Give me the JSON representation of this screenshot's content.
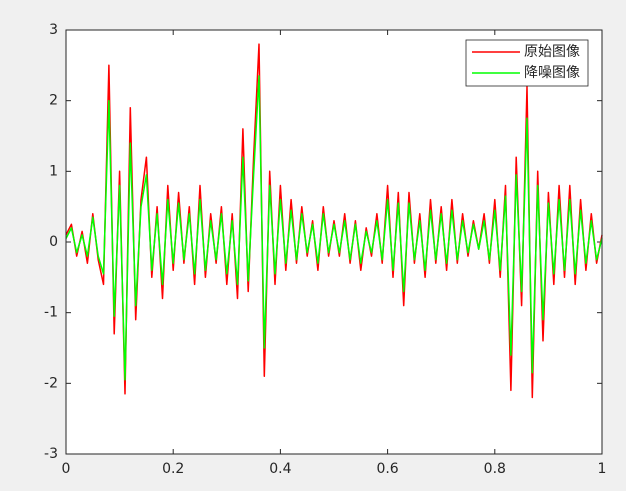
{
  "chart_data": {
    "type": "line",
    "x": [
      0,
      0.01,
      0.02,
      0.03,
      0.04,
      0.05,
      0.06,
      0.07,
      0.08,
      0.09,
      0.1,
      0.11,
      0.12,
      0.13,
      0.14,
      0.15,
      0.16,
      0.17,
      0.18,
      0.19,
      0.2,
      0.21,
      0.22,
      0.23,
      0.24,
      0.25,
      0.26,
      0.27,
      0.28,
      0.29,
      0.3,
      0.31,
      0.32,
      0.33,
      0.34,
      0.35,
      0.36,
      0.37,
      0.38,
      0.39,
      0.4,
      0.41,
      0.42,
      0.43,
      0.44,
      0.45,
      0.46,
      0.47,
      0.48,
      0.49,
      0.5,
      0.51,
      0.52,
      0.53,
      0.54,
      0.55,
      0.56,
      0.57,
      0.58,
      0.59,
      0.6,
      0.61,
      0.62,
      0.63,
      0.64,
      0.65,
      0.66,
      0.67,
      0.68,
      0.69,
      0.7,
      0.71,
      0.72,
      0.73,
      0.74,
      0.75,
      0.76,
      0.77,
      0.78,
      0.79,
      0.8,
      0.81,
      0.82,
      0.83,
      0.84,
      0.85,
      0.86,
      0.87,
      0.88,
      0.89,
      0.9,
      0.91,
      0.92,
      0.93,
      0.94,
      0.95,
      0.96,
      0.97,
      0.98,
      0.99,
      1
    ],
    "series": [
      {
        "name": "原始图像",
        "color": "#ff0000",
        "values": [
          0.1,
          0.25,
          -0.2,
          0.15,
          -0.3,
          0.4,
          -0.25,
          -0.6,
          2.5,
          -1.3,
          1.0,
          -2.15,
          1.9,
          -1.1,
          0.6,
          1.2,
          -0.5,
          0.5,
          -0.8,
          0.8,
          -0.4,
          0.7,
          -0.3,
          0.5,
          -0.6,
          0.8,
          -0.5,
          0.4,
          -0.3,
          0.5,
          -0.6,
          0.4,
          -0.8,
          1.6,
          -0.7,
          1.2,
          2.8,
          -1.9,
          1.0,
          -0.6,
          0.8,
          -0.4,
          0.6,
          -0.3,
          0.5,
          -0.2,
          0.3,
          -0.4,
          0.5,
          -0.2,
          0.3,
          -0.2,
          0.4,
          -0.3,
          0.3,
          -0.4,
          0.2,
          -0.2,
          0.4,
          -0.3,
          0.8,
          -0.5,
          0.7,
          -0.9,
          0.7,
          -0.3,
          0.4,
          -0.5,
          0.6,
          -0.3,
          0.5,
          -0.4,
          0.6,
          -0.3,
          0.4,
          -0.2,
          0.3,
          -0.1,
          0.4,
          -0.3,
          0.6,
          -0.5,
          0.8,
          -2.1,
          1.2,
          -0.9,
          2.2,
          -2.2,
          1.0,
          -1.4,
          0.7,
          -0.6,
          0.8,
          -0.5,
          0.8,
          -0.6,
          0.6,
          -0.4,
          0.4,
          -0.3,
          0.1
        ]
      },
      {
        "name": "降噪图像",
        "color": "#00ff00",
        "values": [
          0.05,
          0.2,
          -0.15,
          0.1,
          -0.2,
          0.35,
          -0.2,
          -0.45,
          2.0,
          -1.05,
          0.8,
          -1.95,
          1.4,
          -0.9,
          0.5,
          0.95,
          -0.4,
          0.4,
          -0.6,
          0.6,
          -0.3,
          0.55,
          -0.25,
          0.4,
          -0.45,
          0.6,
          -0.4,
          0.3,
          -0.25,
          0.4,
          -0.45,
          0.3,
          -0.6,
          1.2,
          -0.55,
          0.95,
          2.35,
          -1.5,
          0.8,
          -0.45,
          0.6,
          -0.3,
          0.45,
          -0.25,
          0.4,
          -0.15,
          0.25,
          -0.3,
          0.4,
          -0.15,
          0.25,
          -0.15,
          0.3,
          -0.25,
          0.25,
          -0.3,
          0.15,
          -0.15,
          0.3,
          -0.25,
          0.6,
          -0.4,
          0.55,
          -0.7,
          0.55,
          -0.25,
          0.3,
          -0.4,
          0.45,
          -0.25,
          0.4,
          -0.3,
          0.45,
          -0.25,
          0.3,
          -0.15,
          0.25,
          -0.1,
          0.3,
          -0.25,
          0.45,
          -0.4,
          0.65,
          -1.6,
          0.95,
          -0.7,
          1.75,
          -1.85,
          0.8,
          -1.1,
          0.55,
          -0.45,
          0.6,
          -0.4,
          0.6,
          -0.45,
          0.45,
          -0.3,
          0.3,
          -0.25,
          0.05
        ]
      }
    ],
    "xlim": [
      0,
      1
    ],
    "xticks": [
      0,
      0.2,
      0.4,
      0.6,
      0.8,
      1
    ],
    "ylim": [
      -3,
      3
    ],
    "yticks": [
      -3,
      -2,
      -1,
      0,
      1,
      2,
      3
    ],
    "legend": "upper right"
  }
}
